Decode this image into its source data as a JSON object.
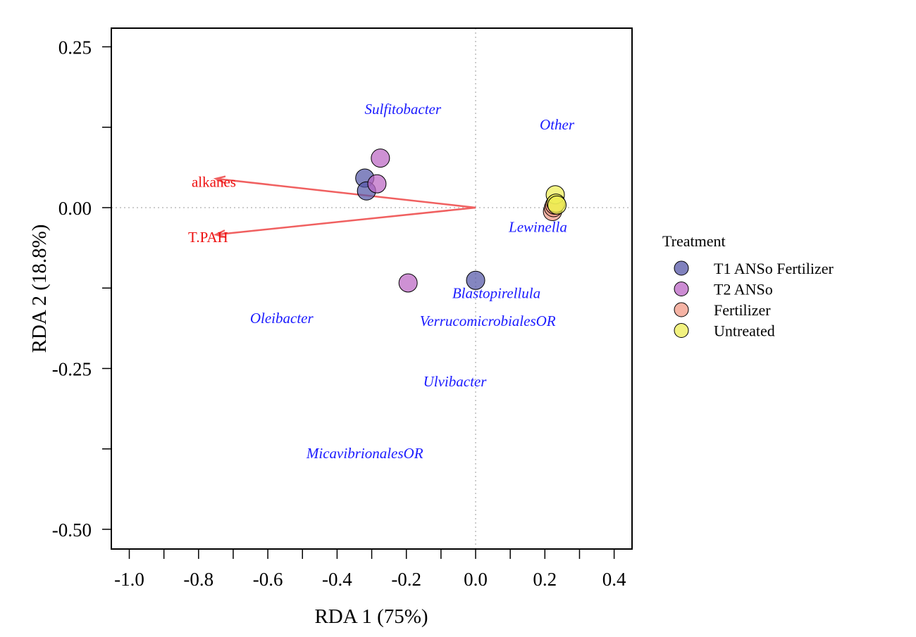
{
  "chart_data": {
    "type": "scatter",
    "xlabel": "RDA 1 (75%)",
    "ylabel": "RDA 2 (18.8%)",
    "xlim": [
      -1.05,
      0.45
    ],
    "ylim": [
      -0.53,
      0.28
    ],
    "x_ticks": [
      -1.0,
      -0.8,
      -0.6,
      -0.4,
      -0.2,
      0.0,
      0.2,
      0.4
    ],
    "x_tick_labels": [
      "-1.0",
      "-0.8",
      "-0.6",
      "-0.4",
      "-0.2",
      "0.0",
      "0.2",
      "0.4"
    ],
    "x_minor_ticks": [
      -0.9,
      -0.7,
      -0.5,
      -0.3,
      -0.1,
      0.1,
      0.3
    ],
    "y_ticks": [
      0.25,
      0.0,
      -0.25,
      -0.5
    ],
    "y_tick_labels": [
      "0.25",
      "0.00",
      "-0.25",
      "-0.50"
    ],
    "y_minor_ticks": [
      0.125,
      -0.125,
      -0.375
    ],
    "reference_lines": {
      "x": 0,
      "y": 0,
      "style": "dotted",
      "color": "#bbbbbb"
    },
    "grid": false,
    "legend": {
      "title": "Treatment",
      "placement": "right",
      "entries": [
        {
          "label": "T1 ANSo Fertilizer",
          "color": "#5557a7"
        },
        {
          "label": "T2 ANSo",
          "color": "#bb66c4"
        },
        {
          "label": "Fertilizer",
          "color": "#f29a86"
        },
        {
          "label": "Untreated",
          "color": "#eeee55"
        }
      ]
    },
    "series": [
      {
        "name": "T1 ANSo Fertilizer",
        "color": "#5557a7",
        "points": [
          [
            -0.32,
            0.046
          ],
          [
            -0.315,
            0.026
          ],
          [
            0.0,
            -0.113
          ]
        ]
      },
      {
        "name": "T2 ANSo",
        "color": "#bb66c4",
        "points": [
          [
            -0.275,
            0.077
          ],
          [
            -0.285,
            0.037
          ],
          [
            -0.195,
            -0.117
          ]
        ]
      },
      {
        "name": "Fertilizer",
        "color": "#f29a86",
        "points": [
          [
            0.222,
            -0.006
          ],
          [
            0.225,
            0.0
          ],
          [
            0.228,
            0.004
          ]
        ]
      },
      {
        "name": "Untreated",
        "color": "#eeee55",
        "points": [
          [
            0.23,
            0.02
          ],
          [
            0.232,
            0.007
          ],
          [
            0.235,
            0.004
          ]
        ]
      }
    ],
    "species_labels": {
      "color": "#1a1aff",
      "items": [
        {
          "text": "Sulfitobacter",
          "x": -0.21,
          "y": 0.153
        },
        {
          "text": "Other",
          "x": 0.235,
          "y": 0.129
        },
        {
          "text": "Lewinella",
          "x": 0.18,
          "y": -0.03
        },
        {
          "text": "Blastopirellula",
          "x": 0.06,
          "y": -0.133
        },
        {
          "text": "Oleibacter",
          "x": -0.56,
          "y": -0.172
        },
        {
          "text": "VerrucomicrobialesOR",
          "x": 0.035,
          "y": -0.176
        },
        {
          "text": "Ulvibacter",
          "x": -0.06,
          "y": -0.27
        },
        {
          "text": "MicavibrionalesOR",
          "x": -0.32,
          "y": -0.382
        }
      ]
    },
    "env_vectors": {
      "color": "#f06060",
      "label_color": "#ee1111",
      "items": [
        {
          "name": "alkanes",
          "x": -0.75,
          "y": 0.045,
          "label_x": -0.82,
          "label_y": 0.04
        },
        {
          "name": "T.PAH",
          "x": -0.75,
          "y": -0.042,
          "label_x": -0.83,
          "label_y": -0.046
        }
      ]
    }
  }
}
